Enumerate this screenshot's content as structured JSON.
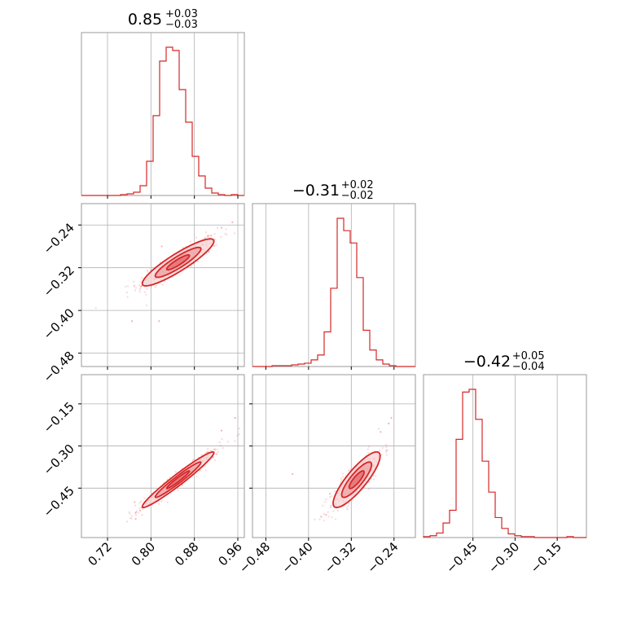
{
  "chart_data": {
    "type": "corner",
    "color": "#d62728",
    "parameters": [
      {
        "title_value": "0.85",
        "title_plus": "+0.03",
        "title_minus": "−0.03",
        "range": [
          0.672,
          0.972
        ],
        "ticks": [
          0.72,
          0.8,
          0.88,
          0.96
        ],
        "tick_labels": [
          "0.72",
          "0.80",
          "0.88",
          "0.96"
        ],
        "median": 0.85
      },
      {
        "title_value": "−0.31",
        "title_plus": "+0.02",
        "title_minus": "−0.02",
        "range": [
          -0.505,
          -0.2
        ],
        "ticks": [
          -0.48,
          -0.4,
          -0.32,
          -0.24
        ],
        "tick_labels": [
          "−0.48",
          "−0.40",
          "−0.32",
          "−0.24"
        ],
        "median": -0.31
      },
      {
        "title_value": "−0.42",
        "title_plus": "+0.05",
        "title_minus": "−0.04",
        "range": [
          -0.626,
          -0.046
        ],
        "ticks": [
          -0.45,
          -0.3,
          -0.15
        ],
        "tick_labels": [
          "−0.45",
          "−0.30",
          "−0.15"
        ],
        "median": -0.42
      }
    ],
    "histograms": [
      {
        "parameter": 0,
        "bin_edges": [
          0.672,
          0.684,
          0.696,
          0.708,
          0.72,
          0.732,
          0.744,
          0.756,
          0.768,
          0.78,
          0.792,
          0.804,
          0.816,
          0.828,
          0.84,
          0.852,
          0.864,
          0.876,
          0.888,
          0.9,
          0.912,
          0.924,
          0.936,
          0.948,
          0.96,
          0.972
        ],
        "counts": [
          0,
          0,
          0,
          0,
          0,
          0,
          1,
          2,
          4,
          12,
          42,
          98,
          165,
          182,
          178,
          130,
          90,
          48,
          24,
          9,
          3,
          1,
          0,
          1,
          0
        ]
      },
      {
        "parameter": 1,
        "bin_edges": [
          -0.505,
          -0.4928,
          -0.4806,
          -0.4684,
          -0.4562,
          -0.444,
          -0.4318,
          -0.4196,
          -0.4074,
          -0.3952,
          -0.383,
          -0.3708,
          -0.3586,
          -0.3464,
          -0.3342,
          -0.322,
          -0.3098,
          -0.2976,
          -0.2854,
          -0.2732,
          -0.261,
          -0.2488,
          -0.2366,
          -0.2244,
          -0.2122,
          -0.2
        ],
        "counts": [
          0,
          0,
          0,
          1,
          1,
          1,
          2,
          3,
          4,
          8,
          14,
          42,
          95,
          180,
          165,
          150,
          108,
          44,
          20,
          8,
          3,
          1,
          0,
          0,
          0
        ]
      },
      {
        "parameter": 2,
        "bin_edges": [
          -0.626,
          -0.6028,
          -0.5796,
          -0.5564,
          -0.5332,
          -0.51,
          -0.4868,
          -0.4636,
          -0.4404,
          -0.4172,
          -0.394,
          -0.3708,
          -0.3476,
          -0.3244,
          -0.3012,
          -0.278,
          -0.2548,
          -0.2316,
          -0.2084,
          -0.1852,
          -0.162,
          -0.1388,
          -0.1156,
          -0.0924,
          -0.0692,
          -0.046
        ],
        "counts": [
          1,
          2,
          5,
          16,
          30,
          108,
          160,
          163,
          130,
          84,
          50,
          22,
          10,
          4,
          2,
          1,
          1,
          0,
          0,
          0,
          0,
          0,
          1,
          0,
          0
        ]
      }
    ],
    "pairs": [
      {
        "x": 0,
        "y": 1,
        "center": [
          0.85,
          -0.31
        ],
        "sd": [
          0.03,
          0.02
        ],
        "corr": 0.9,
        "levels": [
          0.39,
          0.86,
          1.0
        ],
        "outliers": [
          [
            0.765,
            -0.42
          ],
          [
            0.815,
            -0.42
          ],
          [
            0.905,
            -0.26
          ],
          [
            0.93,
            -0.245
          ],
          [
            0.82,
            -0.28
          ],
          [
            0.95,
            -0.235
          ]
        ]
      },
      {
        "x": 0,
        "y": 2,
        "center": [
          0.85,
          -0.42
        ],
        "sd": [
          0.03,
          0.045
        ],
        "corr": 0.97,
        "levels": [
          0.39,
          0.86,
          1.0
        ],
        "outliers": [
          [
            0.955,
            -0.2
          ],
          [
            0.93,
            -0.245
          ],
          [
            0.78,
            -0.53
          ],
          [
            0.77,
            -0.5
          ]
        ]
      },
      {
        "x": 1,
        "y": 2,
        "center": [
          -0.31,
          -0.42
        ],
        "sd": [
          0.02,
          0.045
        ],
        "corr": 0.85,
        "levels": [
          0.39,
          0.86,
          1.0
        ],
        "outliers": [
          [
            -0.43,
            -0.4
          ],
          [
            -0.265,
            -0.25
          ],
          [
            -0.25,
            -0.22
          ],
          [
            -0.36,
            -0.47
          ],
          [
            -0.245,
            -0.2
          ]
        ]
      }
    ],
    "grid": true
  }
}
